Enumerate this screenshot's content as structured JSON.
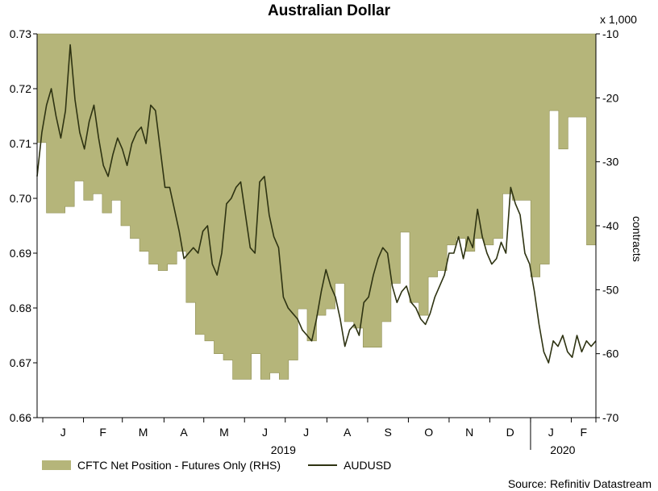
{
  "chart_data": {
    "type": "area+line",
    "title": "Australian Dollar",
    "ylabel_right": "contracts",
    "right_unit": "x 1,000",
    "source": "Source: Refinitiv Datastream",
    "x_months": [
      "J",
      "F",
      "M",
      "A",
      "M",
      "J",
      "J",
      "A",
      "S",
      "O",
      "N",
      "D",
      "J",
      "F"
    ],
    "x_years": [
      "2019",
      "2020"
    ],
    "ylim_left": [
      0.66,
      0.73
    ],
    "yticks_left": [
      "0.73",
      "0.72",
      "0.71",
      "0.70",
      "0.69",
      "0.68",
      "0.67",
      "0.66"
    ],
    "ylim_right": [
      -70,
      -10
    ],
    "yticks_right": [
      "-10",
      "-20",
      "-30",
      "-40",
      "-50",
      "-60",
      "-70"
    ],
    "x_range_weeks": [
      0,
      59
    ],
    "legend": {
      "area_label": "CFTC Net Position - Futures Only (RHS)",
      "line_label": "AUDUSD"
    },
    "colors": {
      "area_fill": "#b5b57a",
      "area_edge": "#8f8f55",
      "line": "#2e3312"
    },
    "series": [
      {
        "name": "CFTC Net Position - Futures Only (RHS)",
        "axis": "right",
        "x": [
          0,
          1,
          2,
          3,
          4,
          5,
          6,
          7,
          8,
          9,
          10,
          11,
          12,
          13,
          14,
          15,
          16,
          17,
          18,
          19,
          20,
          21,
          22,
          23,
          24,
          25,
          26,
          27,
          28,
          29,
          30,
          31,
          32,
          33,
          34,
          35,
          36,
          37,
          38,
          39,
          40,
          41,
          42,
          43,
          44,
          45,
          46,
          47,
          48,
          49,
          50,
          51,
          52,
          53,
          54,
          55,
          56,
          57,
          58,
          59
        ],
        "values": [
          -27,
          -38,
          -38,
          -37,
          -33,
          -36,
          -35,
          -38,
          -36,
          -40,
          -42,
          -44,
          -46,
          -47,
          -46,
          -44,
          -52,
          -57,
          -58,
          -60,
          -61,
          -64,
          -64,
          -60,
          -64,
          -63,
          -64,
          -61,
          -53,
          -58,
          -54,
          -53,
          -49,
          -55,
          -56,
          -59,
          -59,
          -55,
          -49,
          -41,
          -52,
          -54,
          -48,
          -47,
          -43,
          -42,
          -44,
          -42,
          -43,
          -42,
          -35,
          -36,
          -36,
          -48,
          -46,
          -22,
          -28,
          -23,
          -23,
          -43
        ]
      },
      {
        "name": "AUDUSD",
        "axis": "left",
        "x": [
          0,
          0.5,
          1,
          1.5,
          2,
          2.5,
          3,
          3.5,
          4,
          4.5,
          5,
          5.5,
          6,
          6.5,
          7,
          7.5,
          8,
          8.5,
          9,
          9.5,
          10,
          10.5,
          11,
          11.5,
          12,
          12.5,
          13,
          13.5,
          14,
          14.5,
          15,
          15.5,
          16,
          16.5,
          17,
          17.5,
          18,
          18.5,
          19,
          19.5,
          20,
          20.5,
          21,
          21.5,
          22,
          22.5,
          23,
          23.5,
          24,
          24.5,
          25,
          25.5,
          26,
          26.5,
          27,
          27.5,
          28,
          28.5,
          29,
          29.5,
          30,
          30.5,
          31,
          31.5,
          32,
          32.5,
          33,
          33.5,
          34,
          34.5,
          35,
          35.5,
          36,
          36.5,
          37,
          37.5,
          38,
          38.5,
          39,
          39.5,
          40,
          40.5,
          41,
          41.5,
          42,
          42.5,
          43,
          43.5,
          44,
          44.5,
          45,
          45.5,
          46,
          46.5,
          47,
          47.5,
          48,
          48.5,
          49,
          49.5,
          50,
          50.5,
          51,
          51.5,
          52,
          52.5,
          53,
          53.5,
          54,
          54.5,
          55,
          55.5,
          56,
          56.5,
          57,
          57.5,
          58,
          58.5,
          59
        ],
        "values": [
          0.704,
          0.712,
          0.717,
          0.72,
          0.715,
          0.711,
          0.716,
          0.728,
          0.718,
          0.712,
          0.709,
          0.714,
          0.717,
          0.711,
          0.706,
          0.704,
          0.708,
          0.711,
          0.709,
          0.706,
          0.71,
          0.712,
          0.713,
          0.71,
          0.717,
          0.716,
          0.709,
          0.702,
          0.702,
          0.698,
          0.694,
          0.689,
          0.69,
          0.691,
          0.69,
          0.694,
          0.695,
          0.688,
          0.686,
          0.69,
          0.699,
          0.7,
          0.702,
          0.703,
          0.697,
          0.691,
          0.69,
          0.703,
          0.704,
          0.697,
          0.693,
          0.691,
          0.682,
          0.68,
          0.679,
          0.678,
          0.676,
          0.675,
          0.674,
          0.678,
          0.683,
          0.687,
          0.684,
          0.682,
          0.678,
          0.673,
          0.676,
          0.677,
          0.675,
          0.681,
          0.682,
          0.686,
          0.689,
          0.691,
          0.69,
          0.684,
          0.681,
          0.683,
          0.684,
          0.681,
          0.68,
          0.678,
          0.677,
          0.679,
          0.682,
          0.684,
          0.686,
          0.69,
          0.69,
          0.693,
          0.689,
          0.693,
          0.691,
          0.698,
          0.693,
          0.69,
          0.688,
          0.689,
          0.692,
          0.69,
          0.702,
          0.699,
          0.697,
          0.69,
          0.688,
          0.683,
          0.677,
          0.672,
          0.67,
          0.674,
          0.673,
          0.675,
          0.672,
          0.671,
          0.675,
          0.672,
          0.674,
          0.673,
          0.674
        ]
      }
    ]
  }
}
